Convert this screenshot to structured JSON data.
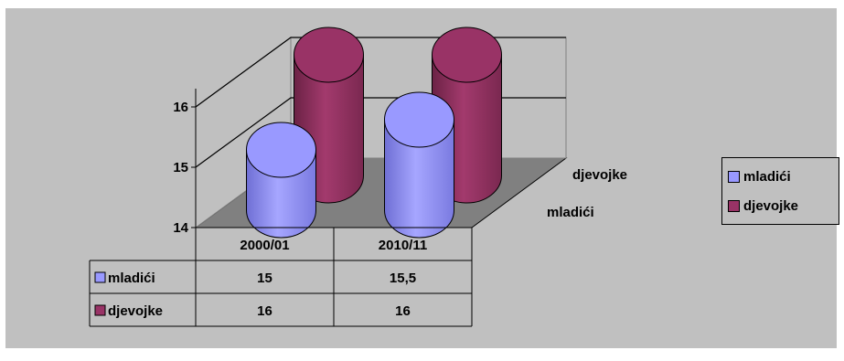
{
  "chart_data": {
    "type": "bar",
    "subtype": "3d-cylinder",
    "categories": [
      "2000/01",
      "2010/11"
    ],
    "series": [
      {
        "name": "mladići",
        "values": [
          15,
          15.5
        ],
        "color": "#9999ff"
      },
      {
        "name": "djevojke",
        "values": [
          16,
          16
        ],
        "color": "#993366"
      }
    ],
    "y_ticks": [
      "14",
      "15",
      "16"
    ],
    "ylim": [
      14,
      16
    ],
    "depth_labels": [
      "djevojke",
      "mladići"
    ],
    "data_table": {
      "headers": [
        "2000/01",
        "2010/11"
      ],
      "rows": [
        {
          "series": "mladići",
          "cells": [
            "15",
            "15,5"
          ]
        },
        {
          "series": "djevojke",
          "cells": [
            "16",
            "16"
          ]
        }
      ]
    },
    "legend_position": "right",
    "gridlines": true
  }
}
